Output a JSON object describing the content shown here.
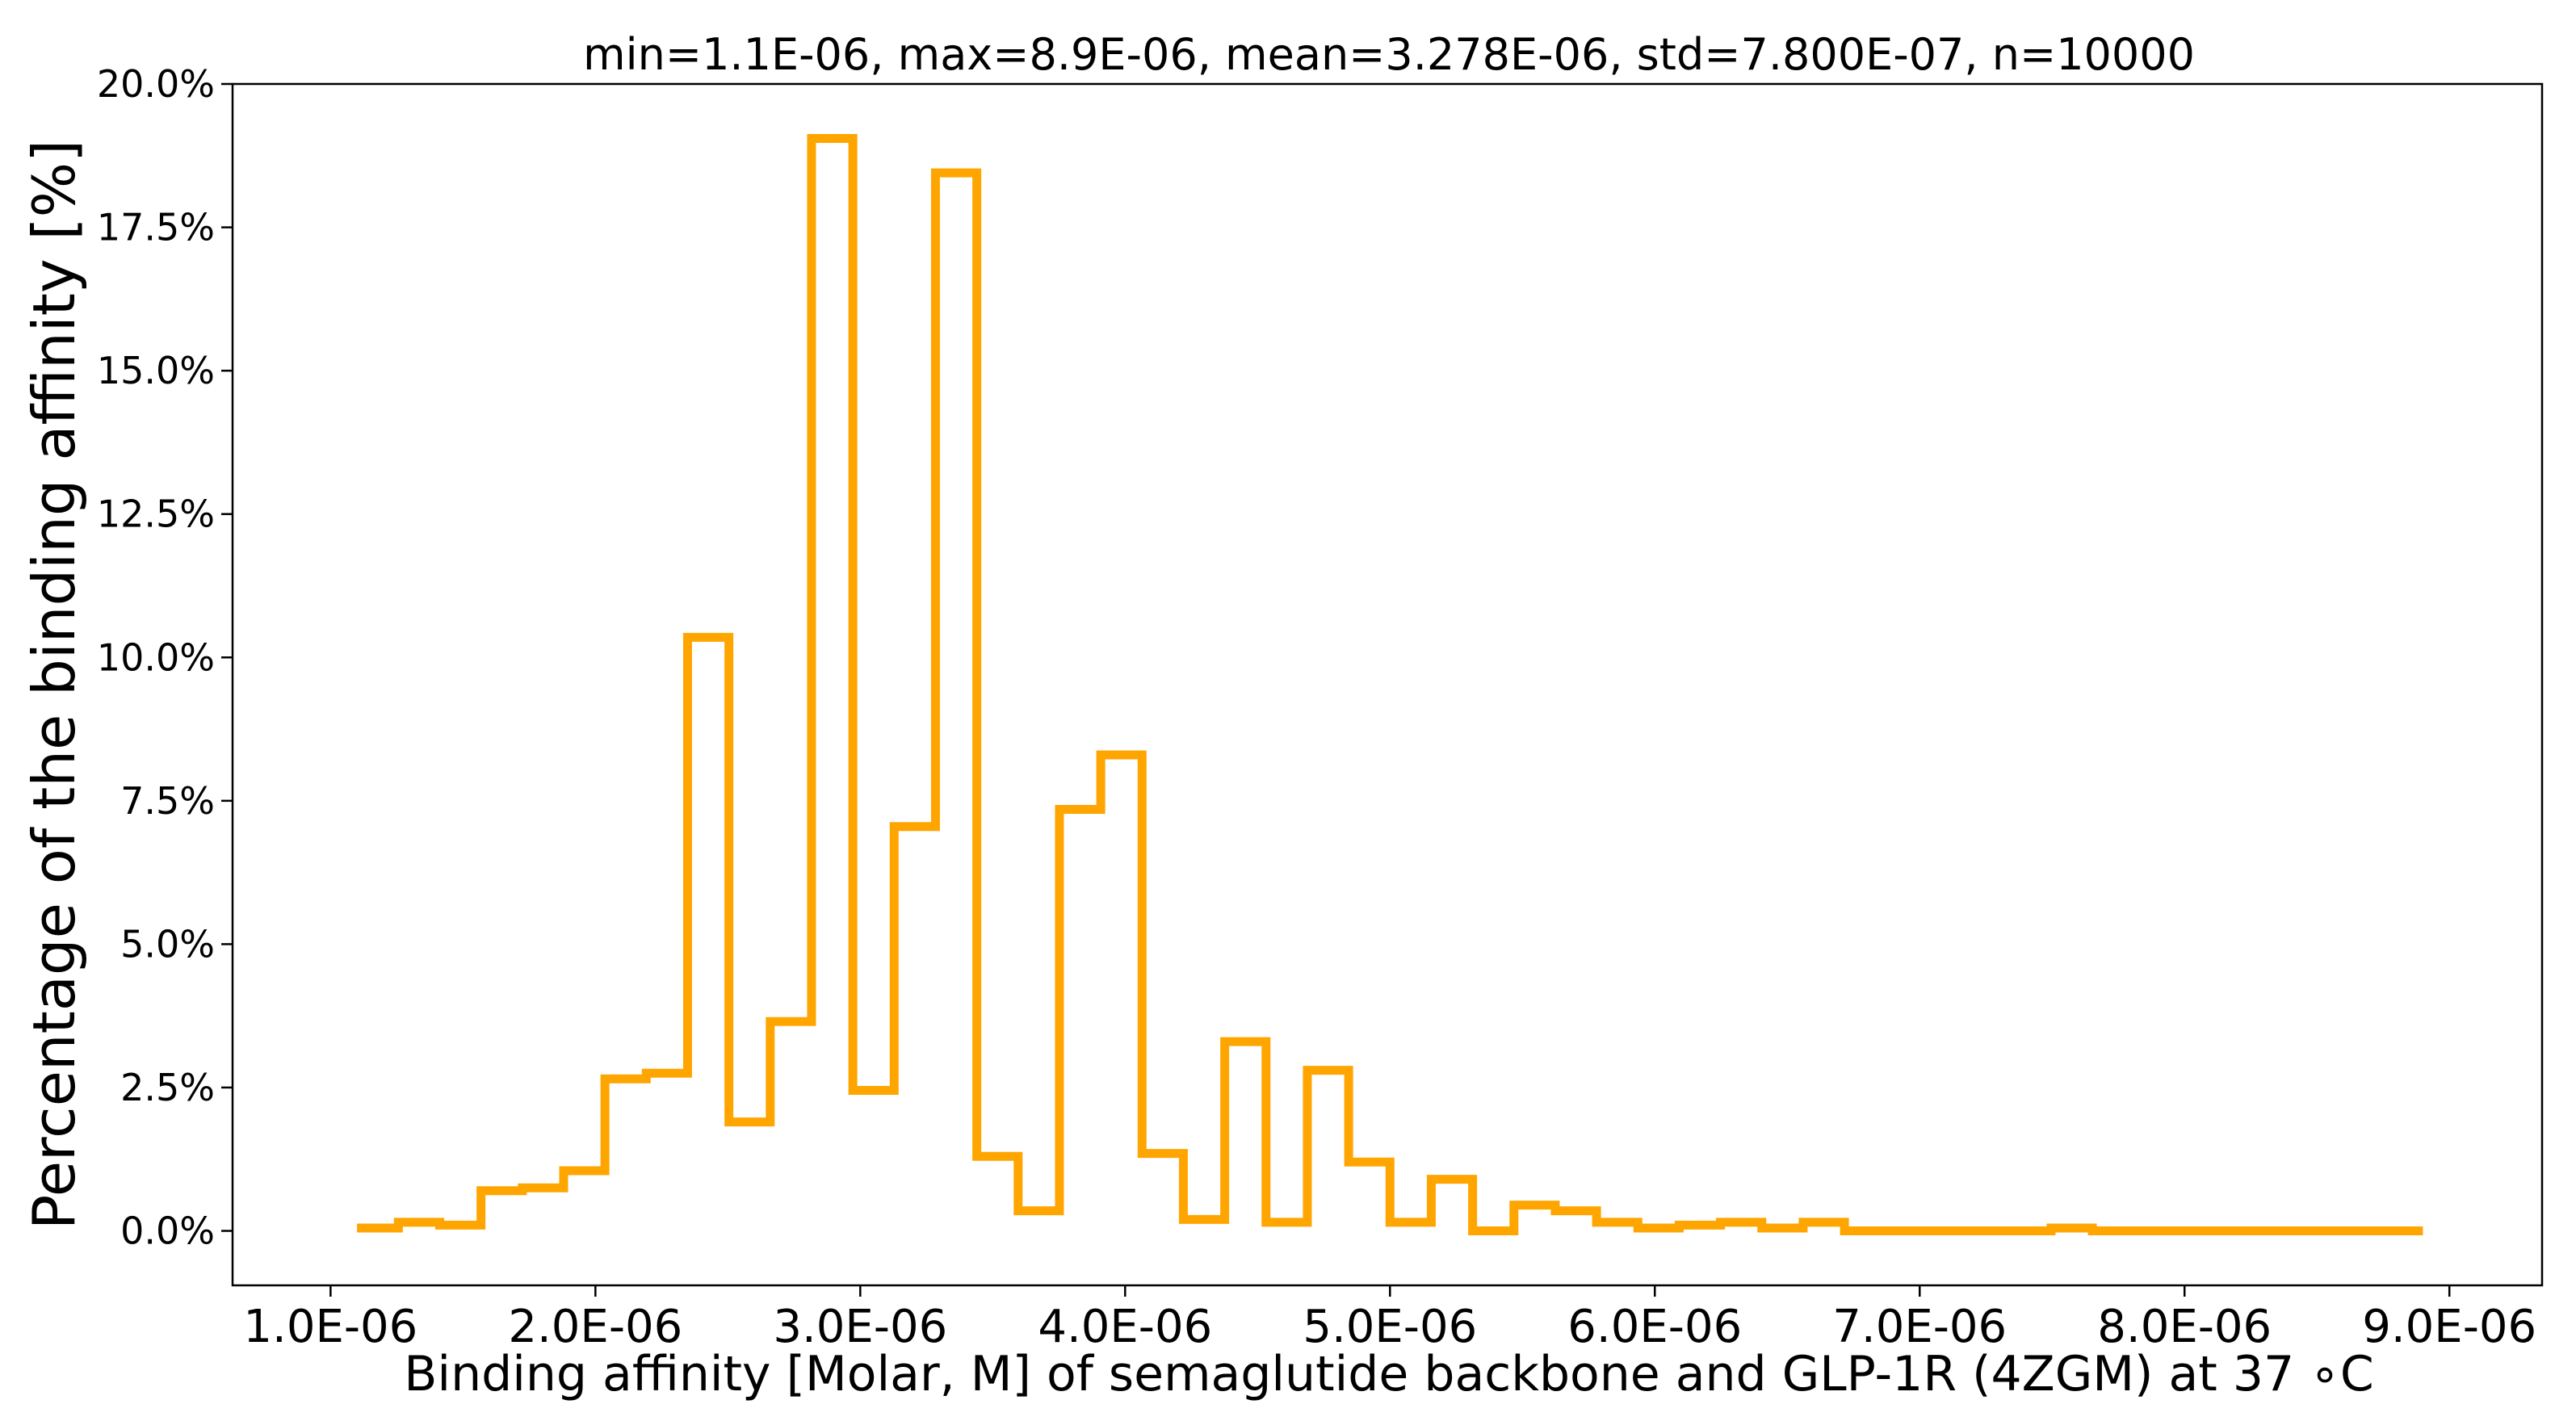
{
  "chart_data": {
    "type": "histogram-step",
    "title": "min=1.1E-06, max=8.9E-06, mean=3.278E-06, std=7.800E-07, n=10000",
    "xlabel": "Binding affinity [Molar, M] of semaglutide backbone and GLP-1R (4ZGM) at 37 $^\\circ$C",
    "xlabel_display": "Binding affinity [Molar, M] of semaglutide backbone and GLP-1R (4ZGM) at 37 ∘C",
    "ylabel": "Percentage of the binding affinity [%]",
    "xlim": [
      6.3e-07,
      9.35e-06
    ],
    "ylim": [
      -0.0095,
      0.2
    ],
    "x_ticks": [
      1e-06,
      2e-06,
      3e-06,
      4e-06,
      5e-06,
      6e-06,
      7e-06,
      8e-06,
      9e-06
    ],
    "x_tick_labels": [
      "1.0E-06",
      "2.0E-06",
      "3.0E-06",
      "4.0E-06",
      "5.0E-06",
      "6.0E-06",
      "7.0E-06",
      "8.0E-06",
      "9.0E-06"
    ],
    "y_ticks": [
      0,
      0.025,
      0.05,
      0.075,
      0.1,
      0.125,
      0.15,
      0.175,
      0.2
    ],
    "y_tick_labels": [
      "0.0%",
      "2.5%",
      "5.0%",
      "7.5%",
      "10.0%",
      "12.5%",
      "15.0%",
      "17.5%",
      "20.0%"
    ],
    "grid": false,
    "color": "#ffa500",
    "bin_edges": [
      1.1e-06,
      1.256e-06,
      1.412e-06,
      1.568e-06,
      1.724e-06,
      1.88e-06,
      2.036e-06,
      2.192e-06,
      2.348e-06,
      2.504e-06,
      2.66e-06,
      2.816e-06,
      2.972e-06,
      3.128e-06,
      3.284e-06,
      3.44e-06,
      3.596e-06,
      3.752e-06,
      3.908e-06,
      4.064e-06,
      4.22e-06,
      4.376e-06,
      4.532e-06,
      4.688e-06,
      4.844e-06,
      5e-06,
      5.156e-06,
      5.312e-06,
      5.468e-06,
      5.624e-06,
      5.78e-06,
      5.936e-06,
      6.092e-06,
      6.248e-06,
      6.404e-06,
      6.56e-06,
      6.716e-06,
      6.872e-06,
      7.028e-06,
      7.184e-06,
      7.34e-06,
      7.496e-06,
      7.652e-06,
      7.808e-06,
      7.964e-06,
      8.12e-06,
      8.276e-06,
      8.432e-06,
      8.588e-06,
      8.744e-06,
      8.9e-06
    ],
    "values": [
      0.0005,
      0.0015,
      0.001,
      0.007,
      0.0075,
      0.0105,
      0.0265,
      0.0275,
      0.1035,
      0.019,
      0.0365,
      0.1905,
      0.0245,
      0.0705,
      0.1845,
      0.013,
      0.0035,
      0.0735,
      0.083,
      0.0135,
      0.002,
      0.033,
      0.0015,
      0.028,
      0.012,
      0.0015,
      0.009,
      0.0,
      0.0045,
      0.0035,
      0.0015,
      0.0005,
      0.001,
      0.0015,
      0.0005,
      0.0015,
      0.0,
      0.0,
      0.0,
      0.0,
      0.0,
      0.0005,
      0.0,
      0.0,
      0.0,
      0.0,
      0.0,
      0.0,
      0.0,
      0.0
    ]
  }
}
